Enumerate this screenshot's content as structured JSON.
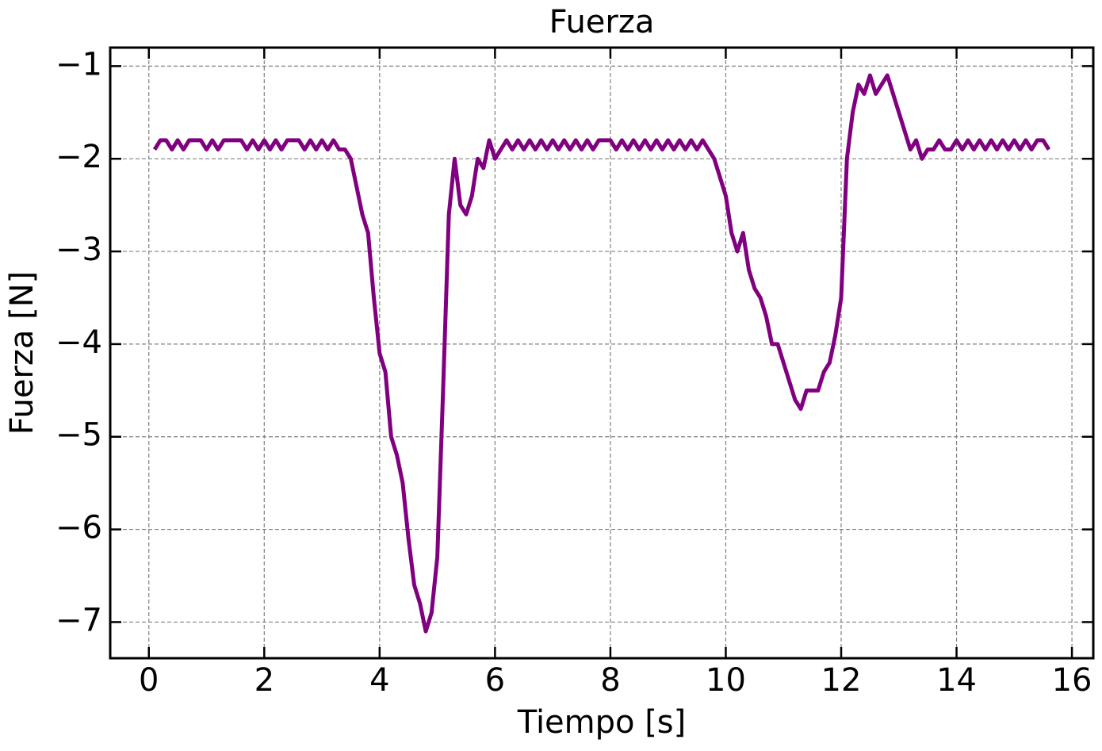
{
  "chart_data": {
    "type": "line",
    "title": "Fuerza",
    "x_label": "Tiempo [s]",
    "y_label": "Fuerza [N]",
    "x": [
      0.1,
      0.2,
      0.3,
      0.4,
      0.5,
      0.6,
      0.7,
      0.8,
      0.9,
      1.0,
      1.1,
      1.2,
      1.3,
      1.4,
      1.5,
      1.6,
      1.7,
      1.8,
      1.9,
      2.0,
      2.1,
      2.2,
      2.3,
      2.4,
      2.5,
      2.6,
      2.7,
      2.8,
      2.9,
      3.0,
      3.1,
      3.2,
      3.3,
      3.4,
      3.5,
      3.6,
      3.7,
      3.8,
      3.9,
      4.0,
      4.1,
      4.2,
      4.3,
      4.4,
      4.5,
      4.6,
      4.7,
      4.8,
      4.9,
      5.0,
      5.1,
      5.2,
      5.3,
      5.4,
      5.5,
      5.6,
      5.7,
      5.8,
      5.9,
      6.0,
      6.1,
      6.2,
      6.3,
      6.4,
      6.5,
      6.6,
      6.7,
      6.8,
      6.9,
      7.0,
      7.1,
      7.2,
      7.3,
      7.4,
      7.5,
      7.6,
      7.7,
      7.8,
      7.9,
      8.0,
      8.1,
      8.2,
      8.3,
      8.4,
      8.5,
      8.6,
      8.7,
      8.8,
      8.9,
      9.0,
      9.1,
      9.2,
      9.3,
      9.4,
      9.5,
      9.6,
      9.7,
      9.8,
      9.9,
      10.0,
      10.1,
      10.2,
      10.3,
      10.4,
      10.5,
      10.6,
      10.7,
      10.8,
      10.9,
      11.0,
      11.1,
      11.2,
      11.3,
      11.4,
      11.5,
      11.6,
      11.7,
      11.8,
      11.9,
      12.0,
      12.1,
      12.2,
      12.3,
      12.4,
      12.5,
      12.6,
      12.7,
      12.8,
      12.9,
      13.0,
      13.1,
      13.2,
      13.3,
      13.4,
      13.5,
      13.6,
      13.7,
      13.8,
      13.9,
      14.0,
      14.1,
      14.2,
      14.3,
      14.4,
      14.5,
      14.6,
      14.7,
      14.8,
      14.9,
      15.0,
      15.1,
      15.2,
      15.3,
      15.4,
      15.5,
      15.6
    ],
    "series": [
      {
        "name": "Fuerza",
        "color": "#800080",
        "values": [
          -1.9,
          -1.8,
          -1.8,
          -1.9,
          -1.8,
          -1.9,
          -1.8,
          -1.8,
          -1.8,
          -1.9,
          -1.8,
          -1.9,
          -1.8,
          -1.8,
          -1.8,
          -1.8,
          -1.9,
          -1.8,
          -1.9,
          -1.8,
          -1.9,
          -1.8,
          -1.9,
          -1.8,
          -1.8,
          -1.8,
          -1.9,
          -1.8,
          -1.9,
          -1.8,
          -1.9,
          -1.8,
          -1.9,
          -1.9,
          -2.0,
          -2.3,
          -2.6,
          -2.8,
          -3.5,
          -4.1,
          -4.3,
          -5.0,
          -5.2,
          -5.5,
          -6.1,
          -6.6,
          -6.8,
          -7.1,
          -6.9,
          -6.3,
          -4.5,
          -2.6,
          -2.0,
          -2.5,
          -2.6,
          -2.4,
          -2.0,
          -2.1,
          -1.8,
          -2.0,
          -1.9,
          -1.8,
          -1.9,
          -1.8,
          -1.9,
          -1.8,
          -1.9,
          -1.8,
          -1.9,
          -1.8,
          -1.9,
          -1.8,
          -1.9,
          -1.8,
          -1.9,
          -1.8,
          -1.9,
          -1.8,
          -1.8,
          -1.8,
          -1.9,
          -1.8,
          -1.9,
          -1.8,
          -1.9,
          -1.8,
          -1.9,
          -1.8,
          -1.9,
          -1.8,
          -1.9,
          -1.8,
          -1.9,
          -1.8,
          -1.9,
          -1.8,
          -1.9,
          -2.0,
          -2.2,
          -2.4,
          -2.8,
          -3.0,
          -2.8,
          -3.2,
          -3.4,
          -3.5,
          -3.7,
          -4.0,
          -4.0,
          -4.2,
          -4.4,
          -4.6,
          -4.7,
          -4.5,
          -4.5,
          -4.5,
          -4.3,
          -4.2,
          -3.9,
          -3.5,
          -2.0,
          -1.5,
          -1.2,
          -1.3,
          -1.1,
          -1.3,
          -1.2,
          -1.1,
          -1.3,
          -1.5,
          -1.7,
          -1.9,
          -1.8,
          -2.0,
          -1.9,
          -1.9,
          -1.8,
          -1.9,
          -1.9,
          -1.8,
          -1.9,
          -1.8,
          -1.9,
          -1.8,
          -1.9,
          -1.8,
          -1.9,
          -1.8,
          -1.9,
          -1.8,
          -1.9,
          -1.8,
          -1.9,
          -1.8,
          -1.8,
          -1.9
        ]
      }
    ],
    "xlim": [
      -0.67,
      16.37
    ],
    "ylim": [
      -7.39,
      -0.8
    ],
    "xticks": [
      0,
      2,
      4,
      6,
      8,
      10,
      12,
      14,
      16
    ],
    "yticks": [
      {
        "value": -1,
        "label": "−1"
      },
      {
        "value": -2,
        "label": "−2"
      },
      {
        "value": -3,
        "label": "−3"
      },
      {
        "value": -4,
        "label": "−4"
      },
      {
        "value": -5,
        "label": "−5"
      },
      {
        "value": -6,
        "label": "−6"
      },
      {
        "value": -7,
        "label": "−7"
      }
    ],
    "grid": true
  }
}
